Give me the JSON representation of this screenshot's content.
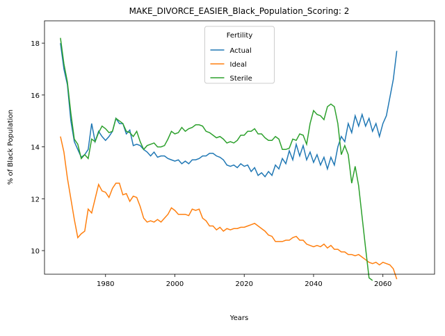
{
  "chart_data": {
    "type": "line",
    "title": "MAKE_DIVORCE_EASIER_Black_Population_Scoring: 2",
    "x_label": "Years",
    "y_label": "% of Black Population",
    "legend_title": "Fertility",
    "legend": "upper center",
    "x": [
      1967,
      1968,
      1969,
      1970,
      1971,
      1972,
      1973,
      1974,
      1975,
      1976,
      1977,
      1978,
      1979,
      1980,
      1981,
      1982,
      1983,
      1984,
      1985,
      1986,
      1987,
      1988,
      1989,
      1990,
      1991,
      1992,
      1993,
      1994,
      1995,
      1996,
      1997,
      1998,
      1999,
      2000,
      2001,
      2002,
      2003,
      2004,
      2005,
      2006,
      2007,
      2008,
      2009,
      2010,
      2011,
      2012,
      2013,
      2014,
      2015,
      2016,
      2017,
      2018,
      2019,
      2020,
      2021,
      2022,
      2023,
      2024,
      2025,
      2026,
      2027,
      2028,
      2029,
      2030,
      2031,
      2032,
      2033,
      2034,
      2035,
      2036,
      2037,
      2038,
      2039,
      2040,
      2041,
      2042,
      2043,
      2044,
      2045,
      2046,
      2047,
      2048,
      2049,
      2050,
      2051,
      2052,
      2053,
      2054,
      2055,
      2056,
      2057,
      2058,
      2059,
      2060,
      2061,
      2062,
      2063,
      2064
    ],
    "series": [
      {
        "name": "Actual",
        "color": "#1f77b4",
        "values": [
          18.0,
          17.0,
          16.4,
          15.0,
          14.2,
          13.9,
          13.6,
          13.7,
          13.9,
          14.9,
          14.2,
          14.6,
          14.4,
          14.25,
          14.4,
          14.6,
          15.1,
          14.9,
          14.9,
          14.5,
          14.65,
          14.05,
          14.1,
          14.05,
          13.9,
          13.8,
          13.65,
          13.8,
          13.6,
          13.65,
          13.65,
          13.55,
          13.5,
          13.45,
          13.5,
          13.35,
          13.45,
          13.35,
          13.5,
          13.5,
          13.55,
          13.65,
          13.65,
          13.75,
          13.75,
          13.65,
          13.6,
          13.5,
          13.3,
          13.25,
          13.3,
          13.2,
          13.35,
          13.25,
          13.3,
          13.05,
          13.2,
          12.9,
          13.0,
          12.85,
          13.05,
          12.9,
          13.3,
          13.15,
          13.55,
          13.35,
          13.85,
          13.5,
          14.1,
          13.65,
          14.05,
          13.5,
          13.8,
          13.4,
          13.7,
          13.3,
          13.6,
          13.15,
          13.6,
          13.3,
          14.0,
          14.4,
          14.2,
          14.9,
          14.55,
          15.2,
          14.8,
          15.25,
          14.8,
          15.1,
          14.6,
          14.9,
          14.4,
          14.9,
          15.2,
          15.9,
          16.6,
          17.7
        ]
      },
      {
        "name": "Ideal",
        "color": "#ff7f0e",
        "values": [
          14.4,
          13.8,
          12.8,
          12.0,
          11.2,
          10.5,
          10.65,
          10.75,
          11.6,
          11.45,
          12.0,
          12.55,
          12.3,
          12.25,
          12.05,
          12.4,
          12.6,
          12.6,
          12.15,
          12.2,
          11.9,
          12.1,
          12.05,
          11.7,
          11.25,
          11.1,
          11.15,
          11.1,
          11.2,
          11.1,
          11.25,
          11.4,
          11.65,
          11.55,
          11.4,
          11.4,
          11.4,
          11.35,
          11.6,
          11.55,
          11.6,
          11.25,
          11.15,
          10.95,
          10.95,
          10.8,
          10.9,
          10.75,
          10.85,
          10.8,
          10.85,
          10.85,
          10.9,
          10.9,
          10.95,
          11.0,
          11.05,
          10.95,
          10.85,
          10.75,
          10.6,
          10.55,
          10.35,
          10.35,
          10.35,
          10.4,
          10.4,
          10.5,
          10.55,
          10.4,
          10.4,
          10.25,
          10.2,
          10.15,
          10.2,
          10.15,
          10.25,
          10.1,
          10.2,
          10.05,
          10.05,
          9.95,
          9.95,
          9.85,
          9.85,
          9.8,
          9.85,
          9.75,
          9.65,
          9.55,
          9.5,
          9.55,
          9.45,
          9.55,
          9.5,
          9.45,
          9.3,
          8.9
        ]
      },
      {
        "name": "Sterile",
        "color": "#2ca02c",
        "values": [
          18.2,
          17.2,
          16.5,
          15.3,
          14.3,
          14.1,
          13.55,
          13.7,
          13.55,
          14.3,
          14.2,
          14.55,
          14.8,
          14.7,
          14.55,
          14.6,
          15.1,
          15.0,
          14.9,
          14.6,
          14.55,
          14.4,
          14.6,
          14.2,
          13.9,
          14.05,
          14.1,
          14.15,
          14.0,
          14.0,
          14.05,
          14.3,
          14.6,
          14.5,
          14.55,
          14.75,
          14.6,
          14.7,
          14.75,
          14.85,
          14.85,
          14.8,
          14.6,
          14.55,
          14.45,
          14.35,
          14.4,
          14.3,
          14.15,
          14.2,
          14.15,
          14.25,
          14.45,
          14.45,
          14.6,
          14.6,
          14.7,
          14.5,
          14.5,
          14.35,
          14.25,
          14.25,
          14.4,
          14.3,
          13.9,
          13.9,
          13.95,
          14.3,
          14.25,
          14.5,
          14.45,
          14.1,
          14.9,
          15.4,
          15.25,
          15.2,
          15.05,
          15.55,
          15.65,
          15.55,
          14.9,
          13.7,
          14.05,
          13.7,
          12.6,
          13.25,
          12.5,
          11.3,
          10.1,
          8.95,
          8.85,
          null,
          null,
          null,
          null,
          null,
          null,
          null
        ]
      }
    ],
    "xlim": [
      1962.4,
      2074.9
    ],
    "xticks": [
      1980,
      2000,
      2020,
      2040,
      2060
    ],
    "ylim": [
      9.09,
      18.86
    ],
    "yticks": [
      10,
      12,
      14,
      16,
      18
    ]
  }
}
